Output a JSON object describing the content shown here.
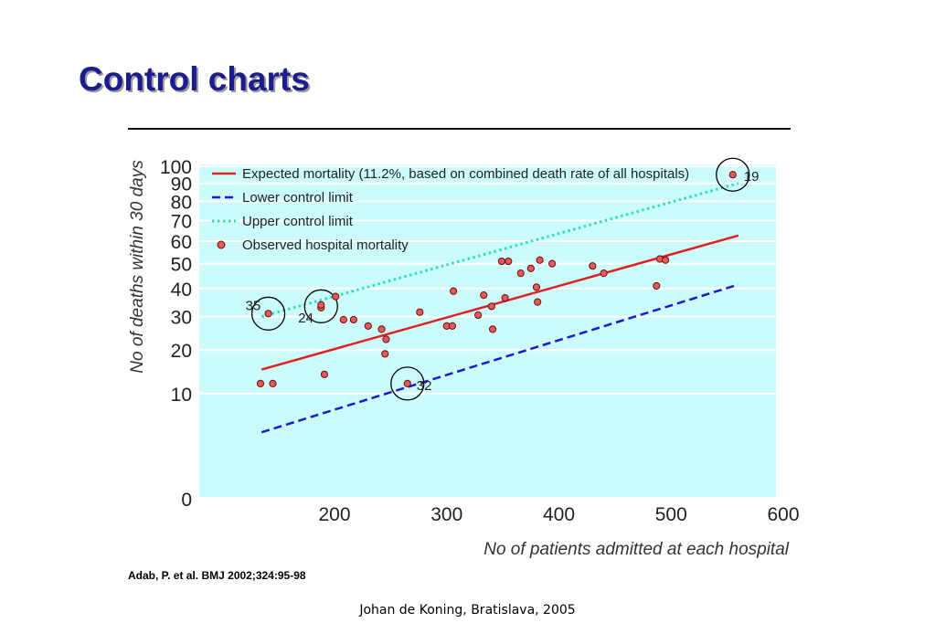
{
  "slide": {
    "title": "Control charts",
    "citation": "Adab, P. et al. BMJ 2002;324:95-98",
    "footer": "Johan de Koning, Bratislava, 2005"
  },
  "chart_data": {
    "type": "scatter",
    "xlabel": "No of patients admitted at each hospital",
    "ylabel": "No of deaths within 30 days",
    "x_ticks": [
      200,
      300,
      400,
      500,
      600
    ],
    "y_ticks": [
      0,
      10,
      20,
      30,
      40,
      50,
      60,
      70,
      80,
      90,
      100
    ],
    "xlim": [
      100,
      600
    ],
    "ylim": [
      0,
      100
    ],
    "y_scale": "sqrt",
    "grid": "horizontal",
    "legend_position": "top-left",
    "colors": {
      "background": "#ccfbfb",
      "grid": "#ffffff",
      "expected": "#e02020",
      "lower": "#1a1ad0",
      "upper": "#28e0c0",
      "point_fill": "#e25a5a",
      "point_stroke": "#6a1010"
    },
    "legend": [
      {
        "label": "Expected mortality (11.2%, based on combined death rate of all hospitals)",
        "key": "expected",
        "style": "solid"
      },
      {
        "label": "Lower control limit",
        "key": "lower",
        "style": "dashed"
      },
      {
        "label": "Upper control limit",
        "key": "upper",
        "style": "dotted"
      },
      {
        "label": "Observed hospital mortality",
        "key": "observed",
        "style": "point"
      }
    ],
    "series": [
      {
        "name": "Expected mortality (11.2%, based on combined death rate of all hospitals)",
        "key": "expected",
        "x": [
          135,
          560
        ],
        "y": [
          15.1,
          62.7
        ]
      },
      {
        "name": "Lower control limit",
        "key": "lower",
        "x": [
          135,
          560
        ],
        "y": [
          4,
          41.5
        ]
      },
      {
        "name": "Upper control limit",
        "key": "upper",
        "x": [
          135,
          560
        ],
        "y": [
          30,
          90
        ]
      }
    ],
    "points": [
      {
        "x": 134,
        "y": 12
      },
      {
        "x": 145,
        "y": 12
      },
      {
        "x": 141,
        "y": 31,
        "label": "35"
      },
      {
        "x": 188,
        "y": 33
      },
      {
        "x": 188,
        "y": 34,
        "label": "24"
      },
      {
        "x": 191,
        "y": 14
      },
      {
        "x": 201,
        "y": 37
      },
      {
        "x": 208,
        "y": 29
      },
      {
        "x": 217,
        "y": 29
      },
      {
        "x": 230,
        "y": 27
      },
      {
        "x": 242,
        "y": 26
      },
      {
        "x": 245,
        "y": 19
      },
      {
        "x": 246,
        "y": 23
      },
      {
        "x": 265,
        "y": 12,
        "label": "32"
      },
      {
        "x": 276,
        "y": 31.5
      },
      {
        "x": 300,
        "y": 27
      },
      {
        "x": 305,
        "y": 27
      },
      {
        "x": 306,
        "y": 39
      },
      {
        "x": 328,
        "y": 30.5
      },
      {
        "x": 333,
        "y": 37.5
      },
      {
        "x": 340,
        "y": 33.5
      },
      {
        "x": 341,
        "y": 26
      },
      {
        "x": 349,
        "y": 51
      },
      {
        "x": 352,
        "y": 36.5
      },
      {
        "x": 355,
        "y": 51
      },
      {
        "x": 366,
        "y": 46
      },
      {
        "x": 375,
        "y": 48
      },
      {
        "x": 380,
        "y": 40.5
      },
      {
        "x": 381,
        "y": 35
      },
      {
        "x": 383,
        "y": 51.5
      },
      {
        "x": 394,
        "y": 50
      },
      {
        "x": 430,
        "y": 49
      },
      {
        "x": 440,
        "y": 46
      },
      {
        "x": 487,
        "y": 41
      },
      {
        "x": 490,
        "y": 52
      },
      {
        "x": 495,
        "y": 51.5
      },
      {
        "x": 555,
        "y": 95,
        "label": "19"
      }
    ],
    "highlighted_points": [
      {
        "x": 555,
        "y": 95
      },
      {
        "x": 141,
        "y": 31
      },
      {
        "x": 188,
        "y": 33.5
      },
      {
        "x": 265,
        "y": 12
      }
    ]
  }
}
